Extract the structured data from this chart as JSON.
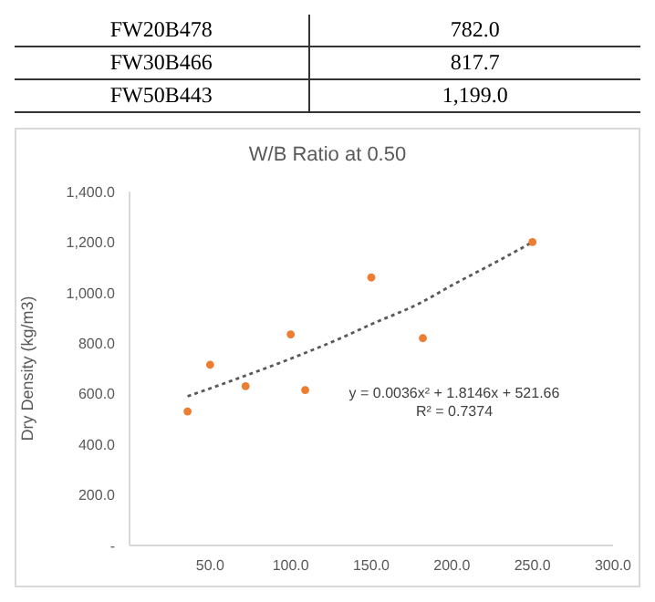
{
  "chart_data": {
    "type": "scatter",
    "title": "W/B Ratio at 0.50",
    "ylabel": "Dry Density (kg/m3)",
    "annotations": [
      "FW20B478",
      "782.0",
      "FW30B466",
      "817.7",
      "FW50B443",
      "1,199.0",
      "y = 0.0036x² + 1.8146x + 521.66",
      "R² = 0.7374"
    ],
    "series": [
      {
        "color": "#ed7d31",
        "x": [
          36,
          50,
          72,
          100,
          109,
          150,
          182,
          250
        ],
        "values": [
          530,
          715,
          630,
          835,
          615,
          1060,
          820,
          1200
        ]
      },
      {
        "type": "line",
        "color": "#595959",
        "line_style": "dotted",
        "marker": "none",
        "x": [
          36,
          70,
          100,
          130,
          150,
          180,
          200,
          230,
          250
        ],
        "values": [
          590,
          667,
          739,
          817,
          875,
          958,
          1029,
          1130,
          1200
        ]
      }
    ],
    "marker": "circle",
    "xlim": [
      0,
      300
    ],
    "xticks": [
      {
        "value": 50,
        "label": "50.0"
      },
      {
        "value": 100,
        "label": "100.0"
      },
      {
        "value": 150,
        "label": "150.0"
      },
      {
        "value": 200,
        "label": "200.0"
      },
      {
        "value": 250,
        "label": "250.0"
      },
      {
        "value": 300,
        "label": "300.0"
      }
    ],
    "ylim": [
      0,
      1400
    ],
    "yticks": [
      {
        "value": 0,
        "label": "-"
      },
      {
        "value": 200,
        "label": "200.0"
      },
      {
        "value": 400,
        "label": "400.0"
      },
      {
        "value": 600,
        "label": "600.0"
      },
      {
        "value": 800,
        "label": "800.0"
      },
      {
        "value": 1000,
        "label": "1,000.0"
      },
      {
        "value": 1200,
        "label": "1,200.0"
      },
      {
        "value": 1400,
        "label": "1,400.0"
      }
    ]
  }
}
